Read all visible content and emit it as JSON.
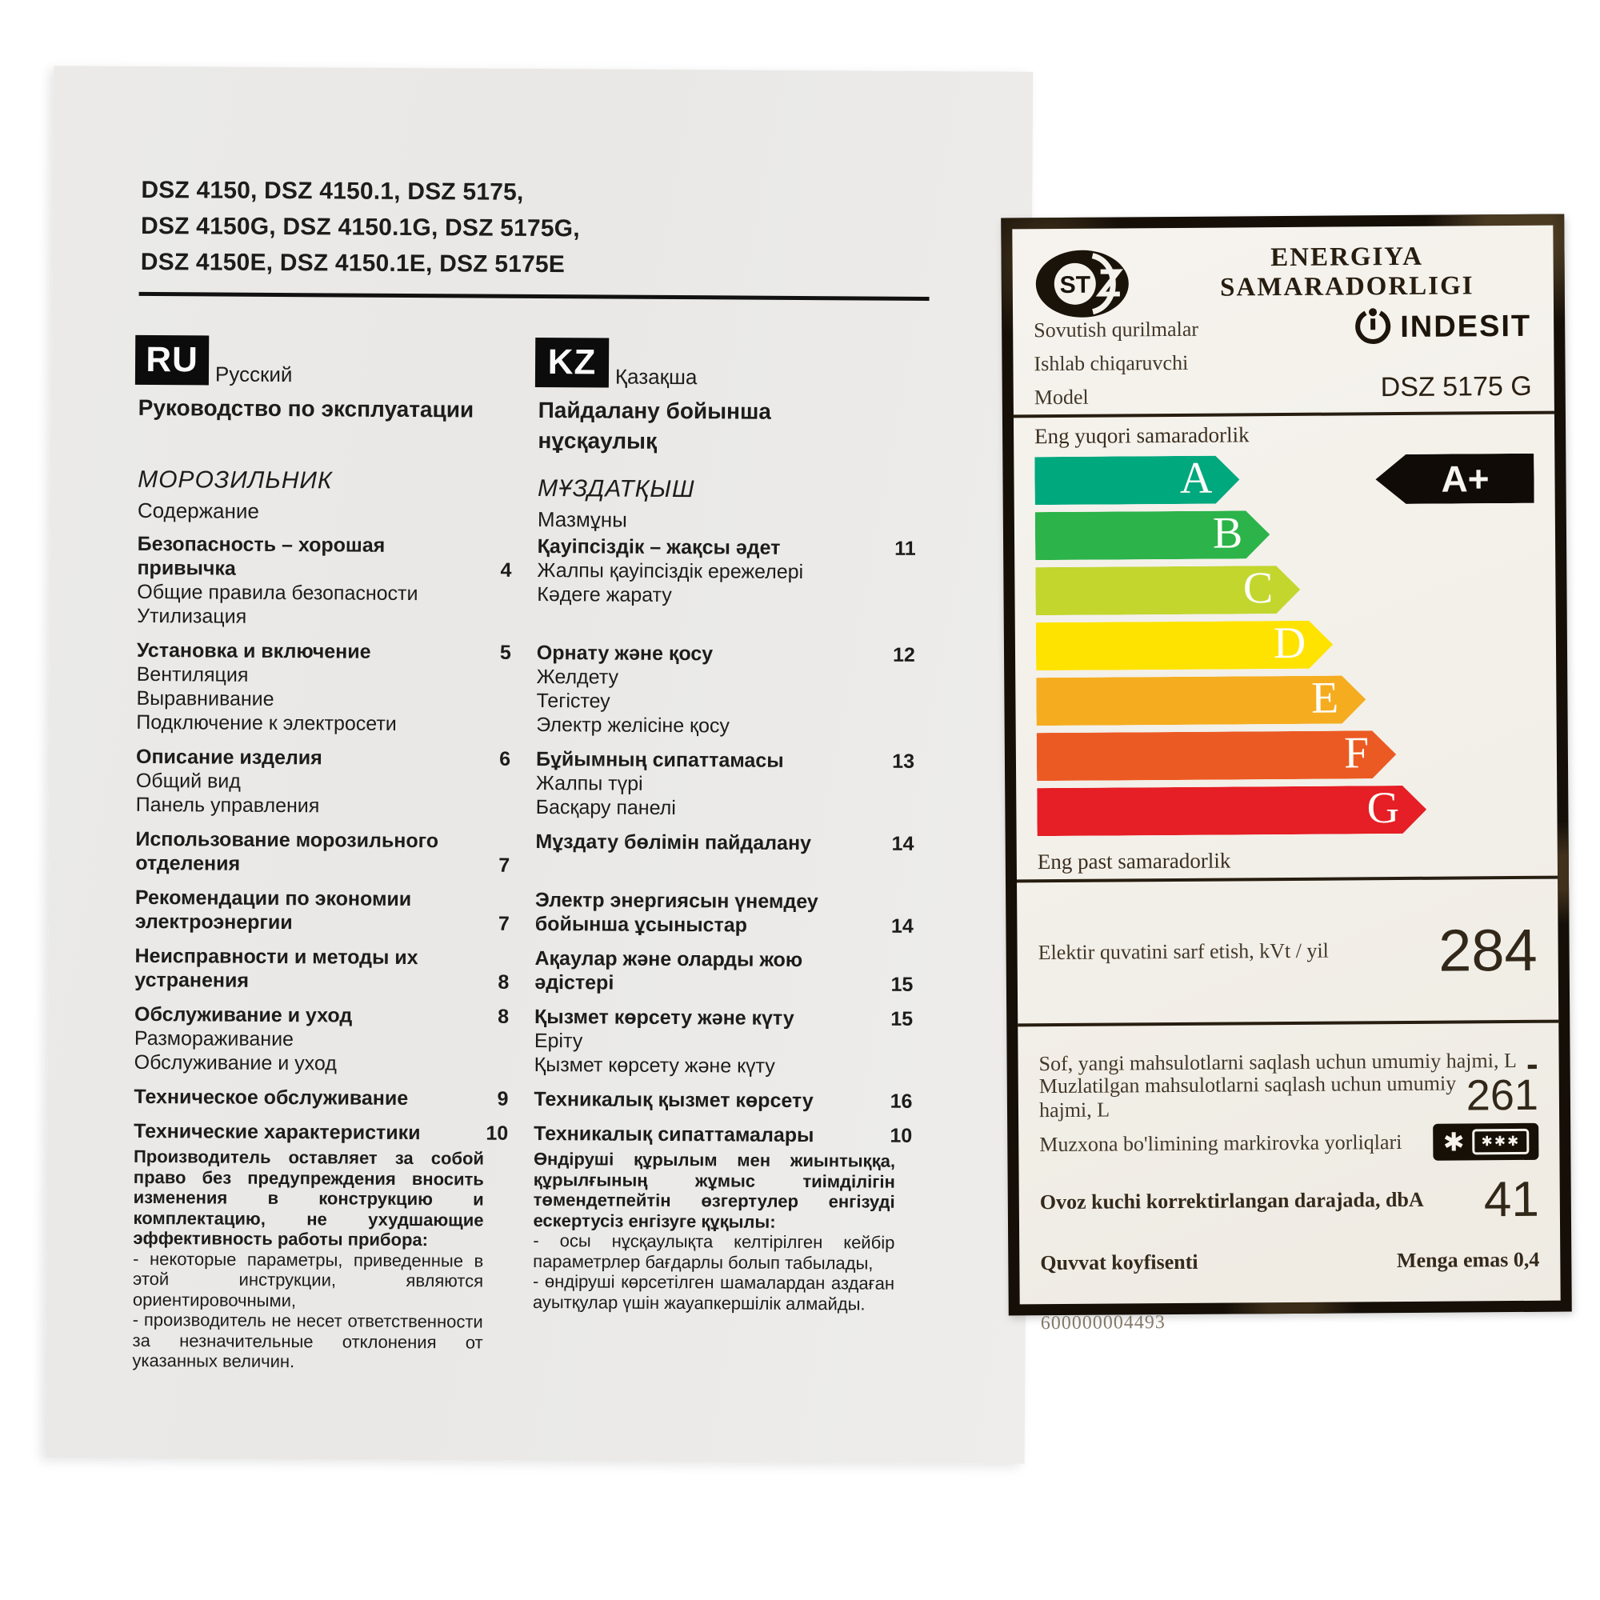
{
  "models": {
    "line1": "DSZ 4150, DSZ 4150.1, DSZ 5175,",
    "line2": "DSZ 4150G, DSZ 4150.1G, DSZ 5175G,",
    "line3": "DSZ 4150E, DSZ 4150.1E, DSZ 5175E"
  },
  "ru": {
    "lang_code": "RU",
    "lang_name": "Русский",
    "doc_title": "Руководство по эксплуатации",
    "section_title": "МОРОЗИЛЬНИК",
    "section_subtitle": "Содержание",
    "footer_bold": "Производитель оставляет за собой право без предупреждения вносить изменения в конструкцию и комплектацию, не ухудшающие эффективность работы прибора:",
    "footer_item1": "- некоторые параметры, приведенные в этой инструкции, являются ориентировочными,",
    "footer_item2": "- производитель не несет ответственности за незначительные отклонения от указанных величин."
  },
  "kz": {
    "lang_code": "KZ",
    "lang_name": "Қазақша",
    "doc_title": "Пайдалану бойынша нұсқаулық",
    "section_title": "МҰЗДАТҚЫШ",
    "section_subtitle": "Мазмұны",
    "footer_bold": "Өндіруші құрылым мен жиынтыққа, құрылғының жұмыс тиімділігін төмендетпейтін өзгертулер енгізуді ескертусіз енгізуге құқылы:",
    "footer_item1": "- осы нұсқаулықта келтірілген кейбір параметрлер бағдарлы болып табылады,",
    "footer_item2": "- өндіруші көрсетілген шамалардан аздаған ауытқулар үшін жауапкершілік алмайды."
  },
  "toc": {
    "rows": [
      {
        "ru_title": "Безопасность – хорошая привычка",
        "ru_page": "4",
        "ru_subs": [
          "Общие правила безопасности",
          "Утилизация"
        ],
        "kz_title": "Қауіпсіздік – жақсы әдет",
        "kz_page": "11",
        "kz_subs": [
          "Жалпы қауіпсіздік ережелері",
          "Кәдеге жарату"
        ]
      },
      {
        "ru_title": "Установка и включение",
        "ru_page": "5",
        "ru_subs": [
          "Вентиляция",
          "Выравнивание",
          "Подключение к электросети"
        ],
        "kz_title": "Орнату және қосу",
        "kz_page": "12",
        "kz_subs": [
          "Желдету",
          "Тегістеу",
          "Электр желісіне қосу"
        ]
      },
      {
        "ru_title": "Описание изделия",
        "ru_page": "6",
        "ru_subs": [
          "Общий вид",
          "Панель управления"
        ],
        "kz_title": "Бұйымның сипаттамасы",
        "kz_page": "13",
        "kz_subs": [
          "Жалпы түрі",
          "Басқару панелі"
        ]
      },
      {
        "ru_title": "Использование морозильного отделения",
        "ru_page": "7",
        "ru_subs": [],
        "kz_title": "Мұздату бөлімін пайдалану",
        "kz_page": "14",
        "kz_subs": []
      },
      {
        "ru_title": "Рекомендации по экономии электроэнергии",
        "ru_page": "7",
        "ru_subs": [],
        "kz_title": "Электр энергиясын үнемдеу бойынша ұсыныстар",
        "kz_page": "14",
        "kz_subs": []
      },
      {
        "ru_title": "Неисправности и методы их устранения",
        "ru_page": "8",
        "ru_subs": [],
        "kz_title": "Ақаулар және оларды жою әдістері",
        "kz_page": "15",
        "kz_subs": []
      },
      {
        "ru_title": "Обслуживание и уход",
        "ru_page": "8",
        "ru_subs": [
          "Размораживание",
          "Обслуживание и уход"
        ],
        "kz_title": "Қызмет көрсету және күту",
        "kz_page": "15",
        "kz_subs": [
          "Еріту",
          "Қызмет көрсету және күту"
        ]
      },
      {
        "ru_title": "Техническое обслуживание",
        "ru_page": "9",
        "ru_subs": [],
        "kz_title": "Техникалық қызмет көрсету",
        "kz_page": "16",
        "kz_subs": []
      },
      {
        "ru_title": "Технические характеристики",
        "ru_page": "10",
        "ru_subs": [],
        "kz_title": "Техникалық сипаттамалары",
        "kz_page": "10",
        "kz_subs": []
      }
    ]
  },
  "label": {
    "title": "ENERGIYA SAMARADORLIGI",
    "st_mark": "ST",
    "info_line1": "Sovutish qurilmalar",
    "info_line2": "Ishlab chiqaruvchi",
    "info_line3": "Model",
    "brand": "INDESIT",
    "model": "DSZ 5175 G",
    "scale_top_label": "Eng yuqori samaradorlik",
    "scale_bottom_label": "Eng past samaradorlik",
    "rating": "A+",
    "grades": [
      {
        "letter": "A",
        "color": "#00a87e",
        "width_pct": 41
      },
      {
        "letter": "B",
        "color": "#2cb34a",
        "width_pct": 47
      },
      {
        "letter": "C",
        "color": "#c2d62e",
        "width_pct": 53
      },
      {
        "letter": "D",
        "color": "#ffe300",
        "width_pct": 59.5
      },
      {
        "letter": "E",
        "color": "#f5ac1f",
        "width_pct": 66
      },
      {
        "letter": "F",
        "color": "#ec5a23",
        "width_pct": 72
      },
      {
        "letter": "G",
        "color": "#e61e25",
        "width_pct": 78
      }
    ],
    "consumption_label": "Elektir quvatini sarf etish, kVt / yil",
    "consumption_value": "284",
    "fresh_volume_label": "Sof, yangi mahsulotlarni saqlash uchun umumiy hajmi, L",
    "fresh_volume_value": "-",
    "frozen_volume_label": "Muzlatilgan mahsulotlarni saqlash uchun umumiy hajmi, L",
    "frozen_volume_value": "261",
    "marking_label": "Muzxona bo'limining markirovka yorliqlari",
    "marking_star_big": "✱",
    "marking_star_triple": "✱✱✱",
    "noise_label": "Ovoz kuchi korrektirlangan darajada, dbA",
    "noise_value": "41",
    "power_factor_label": "Quvvat koyfisenti",
    "power_factor_value": "Menga emas 0,4",
    "code": "600000004493"
  }
}
